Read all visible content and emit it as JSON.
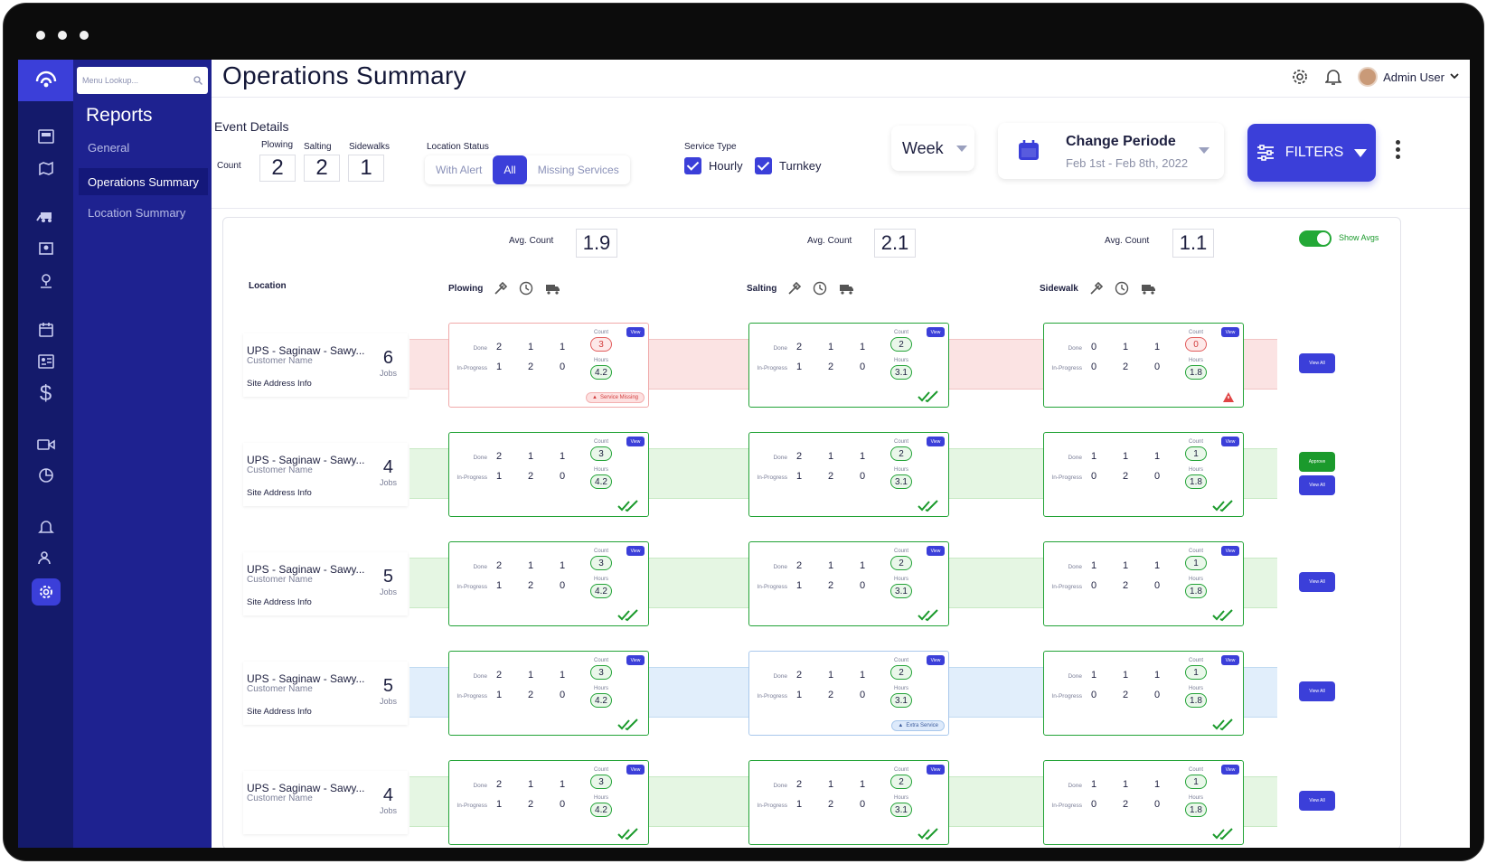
{
  "app": {
    "page_title": "Operations Summary",
    "user": "Admin User"
  },
  "menu": {
    "search_placeholder": "Menu Lookup...",
    "heading": "Reports",
    "items": [
      {
        "label": "General"
      },
      {
        "label": "Operations Summary"
      },
      {
        "label": "Location Summary"
      }
    ]
  },
  "event": {
    "title": "Event Details",
    "count_label": "Count",
    "counts": [
      {
        "label": "Plowing",
        "value": "2"
      },
      {
        "label": "Salting",
        "value": "2"
      },
      {
        "label": "Sidewalks",
        "value": "1"
      }
    ],
    "location_status_label": "Location Status",
    "status_options": [
      "With Alert",
      "All",
      "Missing Services"
    ],
    "status_selected": "All",
    "service_type_label": "Service Type",
    "service_types": [
      {
        "label": "Hourly",
        "checked": true
      },
      {
        "label": "Turnkey",
        "checked": true
      }
    ],
    "week": "Week",
    "period_title": "Change Periode",
    "period_range": "Feb 1st - Feb 8th, 2022",
    "filters": "FILTERS"
  },
  "grid": {
    "avg_label": "Avg. Count",
    "avgs": [
      "1.9",
      "2.1",
      "1.1"
    ],
    "show_avgs": "Show Avgs",
    "location_header": "Location",
    "columns": [
      "Plowing",
      "Salting",
      "Sidewalk"
    ],
    "labels": {
      "done": "Done",
      "in_progress": "In-Progress",
      "count": "Count",
      "hours": "Hours",
      "view": "View",
      "view_all": "View All",
      "approve": "Approve",
      "jobs": "Jobs",
      "missing": "Service Missing",
      "extra": "Extra Service"
    },
    "rows": [
      {
        "name": "UPS - Saginaw - Sawy...",
        "customer": "Customer Name",
        "address": "Site Address Info",
        "jobs": "6",
        "band": "red",
        "actions": [
          "View All"
        ],
        "cards": [
          {
            "done": [
              "2",
              "1",
              "1"
            ],
            "prog": [
              "1",
              "2",
              "0"
            ],
            "count": "3",
            "hours": "4.2",
            "alert": true,
            "state": "red",
            "flag": "Service Missing"
          },
          {
            "done": [
              "2",
              "1",
              "1"
            ],
            "prog": [
              "1",
              "2",
              "0"
            ],
            "count": "2",
            "hours": "3.1",
            "alert": false,
            "state": "green"
          },
          {
            "done": [
              "0",
              "1",
              "1"
            ],
            "prog": [
              "0",
              "2",
              "0"
            ],
            "count": "0",
            "hours": "1.8",
            "alert": true,
            "state": "warn"
          }
        ]
      },
      {
        "name": "UPS - Saginaw - Sawy...",
        "customer": "Customer Name",
        "address": "Site Address Info",
        "jobs": "4",
        "band": "green",
        "actions": [
          "Approve",
          "View All"
        ],
        "cards": [
          {
            "done": [
              "2",
              "1",
              "1"
            ],
            "prog": [
              "1",
              "2",
              "0"
            ],
            "count": "3",
            "hours": "4.2",
            "alert": false,
            "state": "green"
          },
          {
            "done": [
              "2",
              "1",
              "1"
            ],
            "prog": [
              "1",
              "2",
              "0"
            ],
            "count": "2",
            "hours": "3.1",
            "alert": false,
            "state": "green"
          },
          {
            "done": [
              "1",
              "1",
              "1"
            ],
            "prog": [
              "0",
              "2",
              "0"
            ],
            "count": "1",
            "hours": "1.8",
            "alert": false,
            "state": "green"
          }
        ]
      },
      {
        "name": "UPS - Saginaw - Sawy...",
        "customer": "Customer Name",
        "address": "Site Address Info",
        "jobs": "5",
        "band": "green",
        "actions": [
          "View All"
        ],
        "cards": [
          {
            "done": [
              "2",
              "1",
              "1"
            ],
            "prog": [
              "1",
              "2",
              "0"
            ],
            "count": "3",
            "hours": "4.2",
            "alert": false,
            "state": "green"
          },
          {
            "done": [
              "2",
              "1",
              "1"
            ],
            "prog": [
              "1",
              "2",
              "0"
            ],
            "count": "2",
            "hours": "3.1",
            "alert": false,
            "state": "green"
          },
          {
            "done": [
              "1",
              "1",
              "1"
            ],
            "prog": [
              "0",
              "2",
              "0"
            ],
            "count": "1",
            "hours": "1.8",
            "alert": false,
            "state": "green"
          }
        ]
      },
      {
        "name": "UPS - Saginaw - Sawy...",
        "customer": "Customer Name",
        "address": "Site Address Info",
        "jobs": "5",
        "band": "blue",
        "actions": [
          "View All"
        ],
        "cards": [
          {
            "done": [
              "2",
              "1",
              "1"
            ],
            "prog": [
              "1",
              "2",
              "0"
            ],
            "count": "3",
            "hours": "4.2",
            "alert": false,
            "state": "green"
          },
          {
            "done": [
              "2",
              "1",
              "1"
            ],
            "prog": [
              "1",
              "2",
              "0"
            ],
            "count": "2",
            "hours": "3.1",
            "alert": false,
            "state": "blue",
            "flag": "Extra Service"
          },
          {
            "done": [
              "1",
              "1",
              "1"
            ],
            "prog": [
              "0",
              "2",
              "0"
            ],
            "count": "1",
            "hours": "1.8",
            "alert": false,
            "state": "green"
          }
        ]
      },
      {
        "name": "UPS - Saginaw - Sawy...",
        "customer": "Customer Name",
        "address": "",
        "jobs": "4",
        "band": "green",
        "actions": [
          "View All"
        ],
        "cards": [
          {
            "done": [
              "2",
              "1",
              "1"
            ],
            "prog": [
              "1",
              "2",
              "0"
            ],
            "count": "3",
            "hours": "4.2",
            "alert": false,
            "state": "green"
          },
          {
            "done": [
              "2",
              "1",
              "1"
            ],
            "prog": [
              "1",
              "2",
              "0"
            ],
            "count": "2",
            "hours": "3.1",
            "alert": false,
            "state": "green"
          },
          {
            "done": [
              "1",
              "1",
              "1"
            ],
            "prog": [
              "0",
              "2",
              "0"
            ],
            "count": "1",
            "hours": "1.8",
            "alert": false,
            "state": "green"
          }
        ]
      }
    ]
  },
  "colors": {
    "accent": "#3b3fd9",
    "rail": "#141a6b",
    "menu": "#1e2290",
    "ok": "#22a336",
    "alert": "#e25c5c"
  }
}
